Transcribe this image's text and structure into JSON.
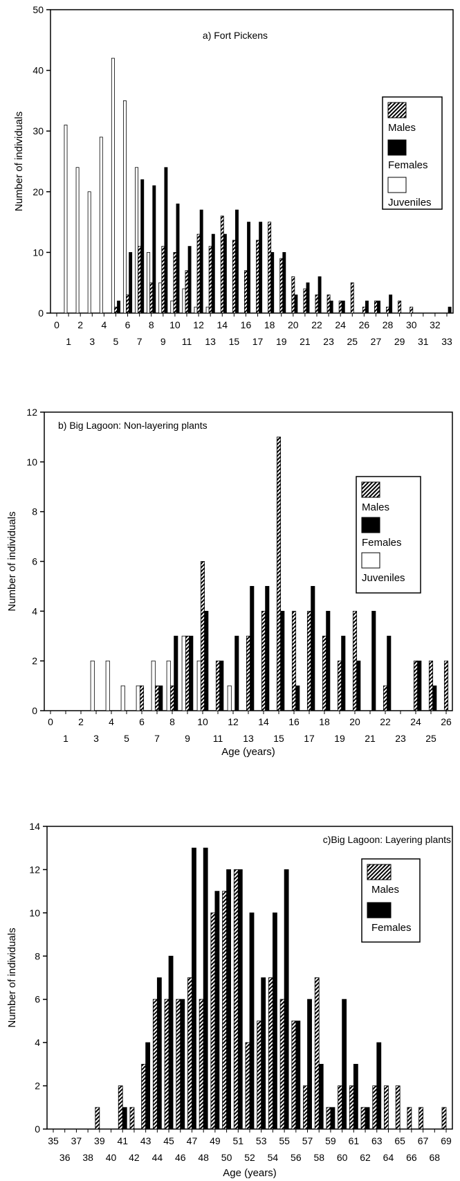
{
  "chart_data": [
    {
      "type": "bar",
      "title": "a) Fort Pickens",
      "ylabel": "Number of individuals",
      "xlabel": "",
      "ylim": [
        0,
        50
      ],
      "yticks": [
        0,
        10,
        20,
        30,
        40,
        50
      ],
      "xlim": [
        0,
        33
      ],
      "legend": "right",
      "series": [
        {
          "name": "Males",
          "pattern": "hatch",
          "points": [
            [
              5,
              1
            ],
            [
              6,
              3
            ],
            [
              7,
              11
            ],
            [
              8,
              5
            ],
            [
              9,
              11
            ],
            [
              10,
              10
            ],
            [
              11,
              7
            ],
            [
              12,
              13
            ],
            [
              13,
              11
            ],
            [
              14,
              16
            ],
            [
              15,
              12
            ],
            [
              16,
              7
            ],
            [
              17,
              12
            ],
            [
              18,
              15
            ],
            [
              19,
              9
            ],
            [
              20,
              6
            ],
            [
              21,
              4
            ],
            [
              22,
              3
            ],
            [
              23,
              3
            ],
            [
              24,
              2
            ],
            [
              25,
              5
            ],
            [
              26,
              1
            ],
            [
              27,
              2
            ],
            [
              28,
              1
            ],
            [
              29,
              2
            ],
            [
              30,
              1
            ]
          ]
        },
        {
          "name": "Females",
          "pattern": "solid",
          "color": "#000000",
          "points": [
            [
              5,
              2
            ],
            [
              6,
              10
            ],
            [
              7,
              22
            ],
            [
              8,
              21
            ],
            [
              9,
              24
            ],
            [
              10,
              18
            ],
            [
              11,
              11
            ],
            [
              12,
              17
            ],
            [
              13,
              13
            ],
            [
              14,
              13
            ],
            [
              15,
              17
            ],
            [
              16,
              15
            ],
            [
              17,
              15
            ],
            [
              18,
              10
            ],
            [
              19,
              10
            ],
            [
              20,
              3
            ],
            [
              21,
              5
            ],
            [
              22,
              6
            ],
            [
              23,
              2
            ],
            [
              24,
              2
            ],
            [
              26,
              2
            ],
            [
              27,
              2
            ],
            [
              28,
              3
            ],
            [
              33,
              1
            ]
          ]
        },
        {
          "name": "Juveniles",
          "pattern": "open",
          "points": [
            [
              1,
              31
            ],
            [
              2,
              24
            ],
            [
              3,
              20
            ],
            [
              4,
              29
            ],
            [
              5,
              42
            ],
            [
              6,
              35
            ],
            [
              7,
              24
            ],
            [
              8,
              10
            ],
            [
              9,
              5
            ],
            [
              10,
              2
            ],
            [
              11,
              4
            ],
            [
              12,
              1
            ],
            [
              13,
              1
            ]
          ]
        }
      ]
    },
    {
      "type": "bar",
      "title": "b) Big Lagoon: Non-layering plants",
      "ylabel": "Number of individuals",
      "xlabel": "Age (years)",
      "ylim": [
        0,
        12
      ],
      "yticks": [
        0,
        2,
        4,
        6,
        8,
        10,
        12
      ],
      "xlim": [
        0,
        26
      ],
      "legend": "right",
      "series": [
        {
          "name": "Males",
          "pattern": "hatch",
          "points": [
            [
              6,
              1
            ],
            [
              7,
              1
            ],
            [
              8,
              1
            ],
            [
              9,
              3
            ],
            [
              10,
              6
            ],
            [
              11,
              2
            ],
            [
              13,
              3
            ],
            [
              14,
              4
            ],
            [
              15,
              11
            ],
            [
              16,
              4
            ],
            [
              17,
              4
            ],
            [
              18,
              3
            ],
            [
              19,
              2
            ],
            [
              20,
              4
            ],
            [
              22,
              1
            ],
            [
              24,
              2
            ],
            [
              25,
              2
            ],
            [
              26,
              2
            ]
          ]
        },
        {
          "name": "Females",
          "pattern": "solid",
          "color": "#000000",
          "points": [
            [
              7,
              1
            ],
            [
              8,
              3
            ],
            [
              9,
              3
            ],
            [
              10,
              4
            ],
            [
              11,
              2
            ],
            [
              12,
              3
            ],
            [
              13,
              5
            ],
            [
              14,
              5
            ],
            [
              15,
              4
            ],
            [
              16,
              1
            ],
            [
              17,
              5
            ],
            [
              18,
              4
            ],
            [
              19,
              3
            ],
            [
              20,
              2
            ],
            [
              21,
              4
            ],
            [
              22,
              3
            ],
            [
              24,
              2
            ],
            [
              25,
              1
            ]
          ]
        },
        {
          "name": "Juveniles",
          "pattern": "open",
          "points": [
            [
              3,
              2
            ],
            [
              4,
              2
            ],
            [
              5,
              1
            ],
            [
              6,
              1
            ],
            [
              7,
              2
            ],
            [
              8,
              2
            ],
            [
              9,
              3
            ],
            [
              10,
              2
            ],
            [
              12,
              1
            ]
          ]
        }
      ]
    },
    {
      "type": "bar",
      "title": "c)Big Lagoon: Layering plants",
      "ylabel": "Number of individuals",
      "xlabel": "Age (years)",
      "ylim": [
        0,
        14
      ],
      "yticks": [
        0,
        2,
        4,
        6,
        8,
        10,
        12,
        14
      ],
      "xlim": [
        35,
        69
      ],
      "legend": "right",
      "series": [
        {
          "name": "Males",
          "pattern": "hatch",
          "points": [
            [
              39,
              1
            ],
            [
              41,
              2
            ],
            [
              42,
              1
            ],
            [
              43,
              3
            ],
            [
              44,
              6
            ],
            [
              45,
              6
            ],
            [
              46,
              6
            ],
            [
              47,
              7
            ],
            [
              48,
              6
            ],
            [
              49,
              10
            ],
            [
              50,
              11
            ],
            [
              51,
              12
            ],
            [
              52,
              4
            ],
            [
              53,
              5
            ],
            [
              54,
              7
            ],
            [
              55,
              6
            ],
            [
              56,
              5
            ],
            [
              57,
              2
            ],
            [
              58,
              7
            ],
            [
              59,
              1
            ],
            [
              60,
              2
            ],
            [
              61,
              2
            ],
            [
              62,
              1
            ],
            [
              63,
              2
            ],
            [
              64,
              2
            ],
            [
              65,
              2
            ],
            [
              66,
              1
            ],
            [
              67,
              1
            ],
            [
              69,
              1
            ]
          ]
        },
        {
          "name": "Females",
          "pattern": "solid",
          "color": "#000000",
          "points": [
            [
              41,
              1
            ],
            [
              43,
              4
            ],
            [
              44,
              7
            ],
            [
              45,
              8
            ],
            [
              46,
              6
            ],
            [
              47,
              13
            ],
            [
              48,
              13
            ],
            [
              49,
              11
            ],
            [
              50,
              12
            ],
            [
              51,
              12
            ],
            [
              52,
              10
            ],
            [
              53,
              7
            ],
            [
              54,
              10
            ],
            [
              55,
              12
            ],
            [
              56,
              5
            ],
            [
              57,
              6
            ],
            [
              58,
              3
            ],
            [
              59,
              1
            ],
            [
              60,
              6
            ],
            [
              61,
              3
            ],
            [
              62,
              1
            ],
            [
              63,
              4
            ]
          ]
        }
      ]
    }
  ],
  "axes": {
    "a": {
      "x_ticks_top": [
        "0",
        "2",
        "4",
        "6",
        "8",
        "10",
        "12",
        "14",
        "16",
        "18",
        "20",
        "22",
        "24",
        "26",
        "28",
        "30",
        "32"
      ],
      "x_ticks_bottom": [
        "1",
        "3",
        "5",
        "7",
        "9",
        "11",
        "13",
        "15",
        "17",
        "19",
        "21",
        "23",
        "25",
        "27",
        "29",
        "31",
        "33"
      ]
    },
    "b": {
      "x_ticks_top": [
        "0",
        "2",
        "4",
        "6",
        "8",
        "10",
        "12",
        "14",
        "16",
        "18",
        "20",
        "22",
        "24",
        "26"
      ],
      "x_ticks_bottom": [
        "1",
        "3",
        "5",
        "7",
        "9",
        "11",
        "13",
        "15",
        "17",
        "19",
        "21",
        "23",
        "25"
      ]
    },
    "c": {
      "x_ticks_top": [
        "35",
        "37",
        "39",
        "41",
        "43",
        "45",
        "47",
        "49",
        "51",
        "53",
        "55",
        "57",
        "59",
        "61",
        "63",
        "65",
        "67",
        "69"
      ],
      "x_ticks_bottom": [
        "36",
        "38",
        "40",
        "42",
        "44",
        "46",
        "48",
        "50",
        "52",
        "54",
        "56",
        "58",
        "60",
        "62",
        "64",
        "66",
        "68"
      ]
    }
  }
}
